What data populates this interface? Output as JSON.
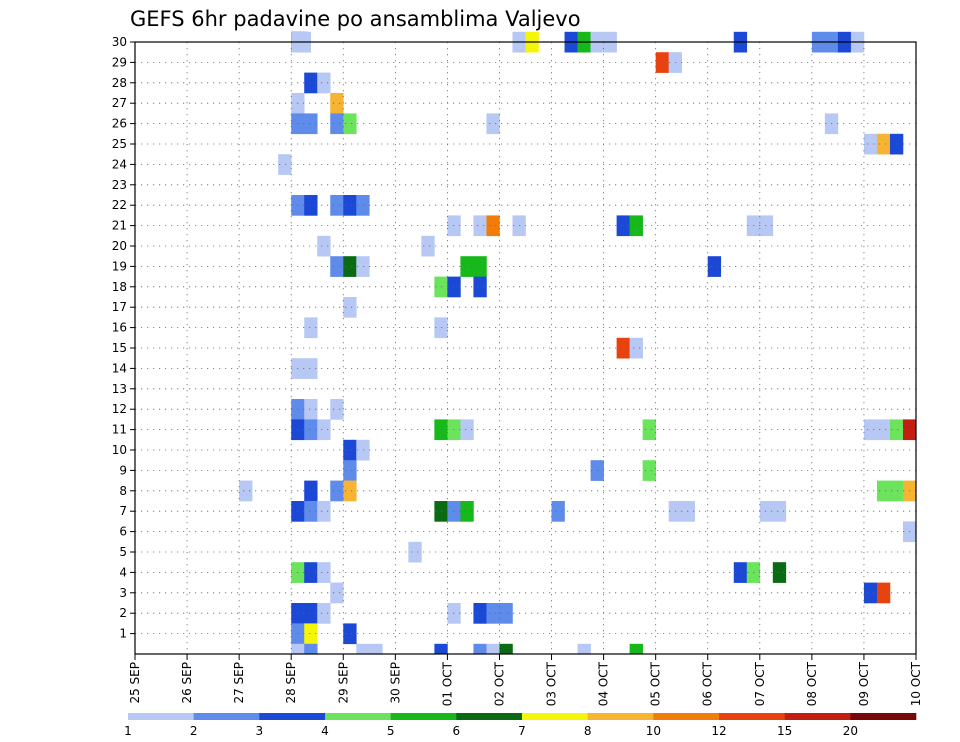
{
  "chart_data": {
    "type": "heatmap",
    "title": "GEFS 6hr padavine po ansamblima Valjevo",
    "xlabel": "",
    "ylabel": "",
    "x_ticks": [
      "25 SEP",
      "26 SEP",
      "27 SEP",
      "28 SEP",
      "29 SEP",
      "30 SEP",
      "01 OCT",
      "02 OCT",
      "03 OCT",
      "04 OCT",
      "05 OCT",
      "06 OCT",
      "07 OCT",
      "08 OCT",
      "09 OCT",
      "10 OCT"
    ],
    "xlim_days": [
      0,
      15
    ],
    "y_ticks": [
      "1",
      "2",
      "3",
      "4",
      "5",
      "6",
      "7",
      "8",
      "9",
      "10",
      "11",
      "12",
      "13",
      "14",
      "15",
      "16",
      "17",
      "18",
      "19",
      "20",
      "21",
      "22",
      "23",
      "24",
      "25",
      "26",
      "27",
      "28",
      "29",
      "30"
    ],
    "ylim": [
      0,
      30
    ],
    "grid": true,
    "colorbar": {
      "labels": [
        "1",
        "2",
        "3",
        "4",
        "5",
        "6",
        "7",
        "8",
        "10",
        "12",
        "15",
        "20"
      ],
      "colors": [
        "#b7c8f5",
        "#5f8bea",
        "#1c48d6",
        "#6be35c",
        "#16b81a",
        "#0a6b12",
        "#f5f50a",
        "#f7b433",
        "#f27c0a",
        "#e8420e",
        "#c21f12",
        "#7a0707"
      ]
    },
    "cells": [
      [
        30,
        3,
        1,
        4
      ],
      [
        30,
        3,
        1.25,
        2
      ],
      [
        30,
        3,
        1.5,
        0
      ],
      [
        30,
        7.25,
        1,
        0
      ],
      [
        30,
        7.5,
        1,
        6
      ],
      [
        30,
        8.25,
        1,
        2
      ],
      [
        30,
        8.5,
        1,
        4
      ],
      [
        30,
        8.75,
        1,
        0
      ],
      [
        30,
        9,
        1,
        0
      ],
      [
        30,
        11.5,
        1,
        2
      ],
      [
        30,
        13,
        1,
        1
      ],
      [
        30,
        13.25,
        1,
        1
      ],
      [
        30,
        13.5,
        1,
        2
      ],
      [
        30,
        13.75,
        1,
        0
      ],
      [
        29,
        10,
        1,
        9
      ],
      [
        29,
        10.25,
        1,
        0
      ],
      [
        28,
        3.25,
        1,
        2
      ],
      [
        28,
        3.5,
        1,
        0
      ],
      [
        27,
        3,
        1,
        0
      ],
      [
        27,
        3.75,
        1,
        7
      ],
      [
        26,
        3,
        1,
        1
      ],
      [
        26,
        3.25,
        1,
        1
      ],
      [
        26,
        3.75,
        1,
        1
      ],
      [
        26,
        4,
        1,
        3
      ],
      [
        26,
        6.75,
        1,
        0
      ],
      [
        26,
        13.25,
        1,
        0
      ],
      [
        25,
        14,
        1,
        0
      ],
      [
        25,
        14.25,
        1,
        7
      ],
      [
        25,
        14.5,
        1,
        2
      ],
      [
        24,
        2.75,
        1,
        0
      ],
      [
        22,
        3,
        1,
        1
      ],
      [
        22,
        3.25,
        1,
        2
      ],
      [
        22,
        3.75,
        1,
        1
      ],
      [
        22,
        4,
        1,
        2
      ],
      [
        22,
        4.25,
        1,
        1
      ],
      [
        21,
        6,
        1,
        0
      ],
      [
        21,
        6.5,
        1,
        0
      ],
      [
        21,
        6.75,
        1,
        8
      ],
      [
        21,
        7.25,
        1,
        0
      ],
      [
        21,
        9.25,
        1,
        2
      ],
      [
        21,
        9.5,
        1,
        4
      ],
      [
        21,
        11.75,
        1,
        0
      ],
      [
        21,
        12,
        1,
        0
      ],
      [
        20,
        3.5,
        1,
        0
      ],
      [
        20,
        5.5,
        1,
        0
      ],
      [
        19,
        3.75,
        1,
        1
      ],
      [
        19,
        4,
        1,
        5
      ],
      [
        19,
        4.25,
        1,
        0
      ],
      [
        19,
        6.25,
        2,
        4
      ],
      [
        19,
        11,
        1,
        2
      ],
      [
        18,
        5.75,
        1,
        3
      ],
      [
        18,
        6,
        1,
        2
      ],
      [
        18,
        6.5,
        1,
        2
      ],
      [
        17,
        4,
        1,
        0
      ],
      [
        16,
        3.25,
        1,
        0
      ],
      [
        16,
        5.75,
        1,
        0
      ],
      [
        15,
        9.25,
        1,
        9
      ],
      [
        15,
        9.5,
        1,
        0
      ],
      [
        14,
        3,
        2,
        0
      ],
      [
        12,
        3,
        1,
        1
      ],
      [
        12,
        3.25,
        1,
        0
      ],
      [
        12,
        3.75,
        1,
        0
      ],
      [
        11,
        3,
        1,
        2
      ],
      [
        11,
        3.25,
        1,
        1
      ],
      [
        11,
        3.5,
        1,
        0
      ],
      [
        11,
        5.75,
        1,
        4
      ],
      [
        11,
        6,
        1,
        3
      ],
      [
        11,
        6.25,
        1,
        0
      ],
      [
        11,
        9.75,
        1,
        3
      ],
      [
        11,
        14,
        1,
        0
      ],
      [
        11,
        14.25,
        1,
        0
      ],
      [
        11,
        14.5,
        1,
        3
      ],
      [
        11,
        14.75,
        1,
        10
      ],
      [
        10,
        4,
        1,
        2
      ],
      [
        10,
        4.25,
        1,
        0
      ],
      [
        9,
        4,
        1,
        1
      ],
      [
        9,
        8.75,
        1,
        1
      ],
      [
        9,
        9.75,
        1,
        3
      ],
      [
        8,
        2,
        1,
        0
      ],
      [
        8,
        3.25,
        1,
        2
      ],
      [
        8,
        3.75,
        1,
        1
      ],
      [
        8,
        4,
        1,
        7
      ],
      [
        8,
        14.25,
        1,
        3
      ],
      [
        8,
        14.5,
        1,
        3
      ],
      [
        8,
        14.75,
        1,
        7
      ],
      [
        7,
        3,
        1,
        2
      ],
      [
        7,
        3.25,
        1,
        1
      ],
      [
        7,
        3.5,
        1,
        0
      ],
      [
        7,
        5.75,
        1,
        5
      ],
      [
        7,
        6,
        1,
        1
      ],
      [
        7,
        6.25,
        1,
        4
      ],
      [
        7,
        8,
        1,
        1
      ],
      [
        7,
        10.25,
        1,
        0
      ],
      [
        7,
        10.5,
        1,
        0
      ],
      [
        7,
        12,
        1,
        0
      ],
      [
        7,
        12.25,
        1,
        0
      ],
      [
        6,
        14.75,
        1,
        0
      ],
      [
        5,
        5.25,
        1,
        0
      ],
      [
        4,
        3,
        1,
        3
      ],
      [
        4,
        3.25,
        1,
        2
      ],
      [
        4,
        3.5,
        1,
        0
      ],
      [
        4,
        11.5,
        1,
        2
      ],
      [
        4,
        11.75,
        1,
        3
      ],
      [
        4,
        12.25,
        1,
        5
      ],
      [
        3,
        3.75,
        1,
        0
      ],
      [
        3,
        14,
        1,
        2
      ],
      [
        3,
        14.25,
        1,
        9
      ],
      [
        2,
        3,
        1,
        2
      ],
      [
        2,
        3.25,
        1,
        2
      ],
      [
        2,
        3.5,
        1,
        0
      ],
      [
        2,
        6,
        1,
        0
      ],
      [
        2,
        6.5,
        1,
        2
      ],
      [
        2,
        6.75,
        1,
        1
      ],
      [
        2,
        7,
        1,
        1
      ],
      [
        1,
        3,
        1,
        1
      ],
      [
        1,
        3.25,
        1,
        6
      ],
      [
        1,
        4,
        1,
        2
      ],
      [
        0,
        3,
        1,
        0
      ],
      [
        0,
        3.25,
        1,
        1
      ],
      [
        0,
        4.25,
        1,
        0
      ],
      [
        0,
        4.5,
        1,
        0
      ],
      [
        0,
        5.75,
        1,
        2
      ],
      [
        0,
        6.5,
        1,
        1
      ],
      [
        0,
        6.75,
        1,
        0
      ],
      [
        0,
        7,
        1,
        5
      ],
      [
        0,
        8.5,
        1,
        0
      ],
      [
        0,
        9.5,
        1,
        4
      ]
    ],
    "cells_format": "[member_row, start_day_offset_from_25SEP, count_of_6hr_steps, color_class_index]"
  }
}
